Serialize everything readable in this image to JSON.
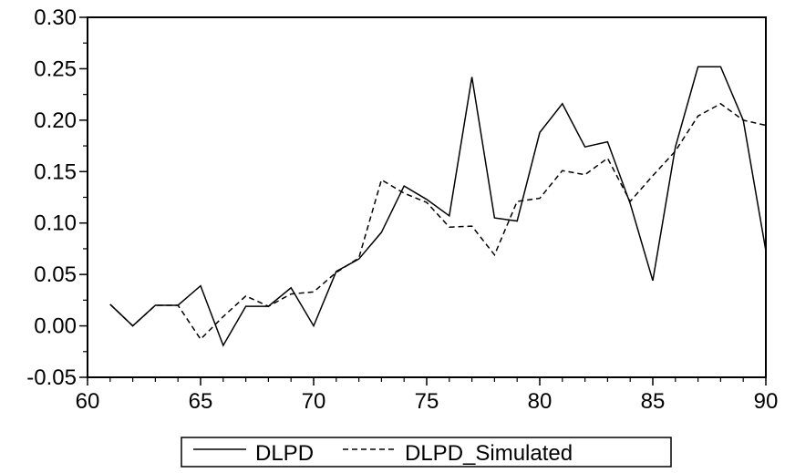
{
  "chart_data": {
    "type": "line",
    "title": "",
    "xlabel": "",
    "ylabel": "",
    "xlim": [
      60,
      90
    ],
    "ylim": [
      -0.05,
      0.3
    ],
    "x_ticks": [
      60,
      65,
      70,
      75,
      80,
      85,
      90
    ],
    "x_tick_labels": [
      "60",
      "65",
      "70",
      "75",
      "80",
      "85",
      "90"
    ],
    "y_ticks": [
      -0.05,
      0.0,
      0.05,
      0.1,
      0.15,
      0.2,
      0.25,
      0.3
    ],
    "y_tick_labels": [
      "-0.05",
      "0.00",
      "0.05",
      "0.10",
      "0.15",
      "0.20",
      "0.25",
      "0.30"
    ],
    "grid": false,
    "legend_position": "bottom-center",
    "x": [
      61,
      62,
      63,
      64,
      65,
      66,
      67,
      68,
      69,
      70,
      71,
      72,
      73,
      74,
      75,
      76,
      77,
      78,
      79,
      80,
      81,
      82,
      83,
      84,
      85,
      86,
      87,
      88,
      89,
      90
    ],
    "series": [
      {
        "name": "DLPD",
        "style": "solid",
        "color": "#000000",
        "values": [
          0.021,
          0.0,
          0.02,
          0.02,
          0.039,
          -0.019,
          0.019,
          0.019,
          0.037,
          0.0,
          0.053,
          0.065,
          0.091,
          0.136,
          0.123,
          0.107,
          0.242,
          0.105,
          0.102,
          0.188,
          0.216,
          0.174,
          0.179,
          0.119,
          0.044,
          0.174,
          0.252,
          0.252,
          0.2,
          0.073
        ]
      },
      {
        "name": "DLPD_Simulated",
        "style": "dashed",
        "color": "#000000",
        "values": [
          0.021,
          0.0,
          0.02,
          0.02,
          -0.013,
          0.009,
          0.029,
          0.019,
          0.031,
          0.033,
          0.052,
          0.066,
          0.142,
          0.129,
          0.12,
          0.096,
          0.097,
          0.069,
          0.121,
          0.124,
          0.151,
          0.147,
          0.163,
          0.121,
          0.146,
          0.17,
          0.204,
          0.216,
          0.2,
          0.195
        ]
      }
    ]
  }
}
